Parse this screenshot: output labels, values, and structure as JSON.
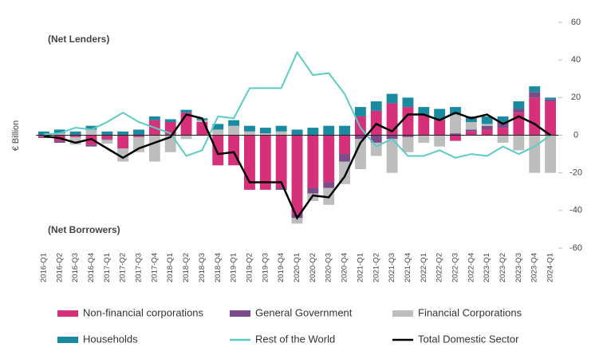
{
  "chart_data": {
    "type": "bar",
    "y_label": "€ Billion",
    "annotations": [
      "(Net Lenders)",
      "(Net Borrowers)"
    ],
    "categories": [
      "2016-Q1",
      "2016-Q2",
      "2016-Q3",
      "2016-Q4",
      "2017-Q1",
      "2017-Q2",
      "2017-Q3",
      "2017-Q4",
      "2018-Q1",
      "2018-Q2",
      "2018-Q3",
      "2018-Q4",
      "2019-Q1",
      "2019-Q2",
      "2019-Q3",
      "2019-Q4",
      "2020-Q1",
      "2020-Q2",
      "2020-Q3",
      "2020-Q4",
      "2021-Q1",
      "2021-Q2",
      "2021-Q3",
      "2021-Q4",
      "2022-Q1",
      "2022-Q2",
      "2022-Q3",
      "2022-Q4",
      "2023-Q1",
      "2023-Q2",
      "2023-Q3",
      "2023-Q4",
      "2024-Q1"
    ],
    "series": [
      {
        "name": "Non-financial corporations",
        "color": "#d6307a",
        "values": [
          -1,
          -3,
          -1,
          -5,
          -2,
          -7,
          -1,
          8,
          7,
          12,
          7,
          -16,
          -16,
          -29,
          -29,
          -28,
          -42,
          -28,
          -25,
          -10,
          10,
          13,
          17,
          15,
          11,
          8,
          -3,
          2,
          3,
          4,
          12,
          20,
          18
        ]
      },
      {
        "name": "General Government",
        "color": "#7b4c8a",
        "values": [
          -0.5,
          -1,
          0,
          -1,
          -0.5,
          0,
          0,
          0,
          0,
          0,
          0,
          0,
          0,
          0,
          0,
          -1,
          -2,
          -3,
          -3,
          -4,
          -2,
          -4,
          -2,
          -1,
          0,
          0,
          1,
          1,
          2,
          3,
          2,
          3,
          1
        ]
      },
      {
        "name": "Financial Corporations",
        "color": "#bdbdbd",
        "values": [
          0,
          1,
          -4,
          3,
          -2,
          -7,
          -8,
          -14,
          -9,
          -2,
          1,
          3,
          5,
          2,
          1,
          2,
          -3,
          -4,
          -9,
          -12,
          -16,
          -7,
          -18,
          -8,
          -4,
          -6,
          10,
          4,
          1,
          -4,
          -8,
          -20,
          -20
        ]
      },
      {
        "name": "Households",
        "color": "#1a8aa0",
        "values": [
          2,
          2,
          2,
          2,
          2,
          2,
          3,
          2,
          1.5,
          1.5,
          1,
          3,
          3,
          3,
          3,
          3,
          3,
          4,
          5,
          5,
          5,
          5,
          5,
          5,
          4,
          6,
          4,
          3,
          4,
          3,
          4,
          3,
          1
        ]
      },
      {
        "name": "Rest of the World",
        "color": "#5ccbc4",
        "type": "line",
        "values": [
          0.5,
          1,
          4,
          3,
          7,
          12,
          7,
          4,
          1,
          -11,
          -8,
          10,
          9,
          25,
          25,
          25,
          44,
          32,
          33,
          22,
          4,
          -6,
          -2,
          -11,
          -11,
          -8,
          -12,
          -10,
          -11,
          -6,
          -10,
          -6,
          0
        ]
      },
      {
        "name": "Total Domestic Sector",
        "color": "#000000",
        "type": "line",
        "values": [
          -0.5,
          -1.5,
          -4,
          -2,
          -7,
          -12,
          -7,
          -4,
          -1,
          11,
          9,
          -10,
          -9,
          -25,
          -25,
          -25,
          -44,
          -32,
          -33,
          -22,
          -4,
          6,
          2,
          11,
          11,
          8,
          12,
          9,
          11,
          6,
          10,
          6,
          0
        ]
      }
    ],
    "ylim": [
      -60,
      60
    ],
    "yticks": [
      -60,
      -40,
      -20,
      0,
      20,
      40,
      60
    ]
  }
}
